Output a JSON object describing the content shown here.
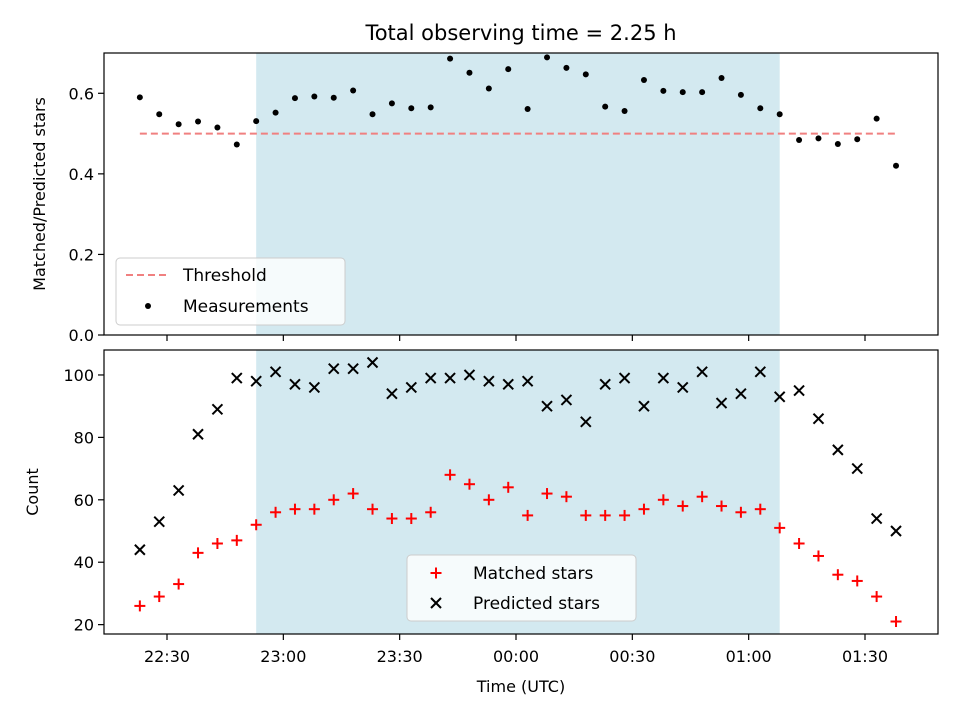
{
  "chart_data": [
    {
      "type": "scatter",
      "title": "Total observing time = 2.25 h",
      "xlabel": "",
      "ylabel": "Matched/Predicted stars",
      "x_axis": "time (UTC)",
      "x_ticks": [
        "22:30",
        "23:00",
        "23:30",
        "00:00",
        "00:30",
        "01:00",
        "01:30"
      ],
      "ylim": [
        0,
        0.7
      ],
      "y_ticks": [
        "0.0",
        "0.2",
        "0.4",
        "0.6"
      ],
      "grid": false,
      "legend_position": "lower-left",
      "shaded_interval": {
        "start": "22:53",
        "end": "01:08",
        "color": "#d3e9f0"
      },
      "threshold": {
        "name": "Threshold",
        "value": 0.5,
        "color": "#f08080",
        "style": "dashed"
      },
      "series": [
        {
          "name": "Measurements",
          "marker": "dot",
          "color": "#000000",
          "x": [
            "22:23",
            "22:28",
            "22:33",
            "22:38",
            "22:43",
            "22:48",
            "22:53",
            "22:58",
            "23:03",
            "23:08",
            "23:13",
            "23:18",
            "23:23",
            "23:28",
            "23:33",
            "23:38",
            "23:43",
            "23:48",
            "23:53",
            "23:58",
            "00:03",
            "00:08",
            "00:13",
            "00:18",
            "00:23",
            "00:28",
            "00:33",
            "00:38",
            "00:43",
            "00:48",
            "00:53",
            "00:58",
            "01:03",
            "01:08",
            "01:13",
            "01:18",
            "01:23",
            "01:28",
            "01:33",
            "01:38"
          ],
          "y": [
            0.59,
            0.548,
            0.523,
            0.53,
            0.515,
            0.473,
            0.531,
            0.552,
            0.588,
            0.592,
            0.589,
            0.607,
            0.548,
            0.575,
            0.563,
            0.565,
            0.686,
            0.651,
            0.612,
            0.66,
            0.561,
            0.689,
            0.663,
            0.647,
            0.567,
            0.556,
            0.633,
            0.606,
            0.603,
            0.603,
            0.638,
            0.596,
            0.563,
            0.548,
            0.484,
            0.488,
            0.474,
            0.486,
            0.537,
            0.42
          ]
        }
      ]
    },
    {
      "type": "scatter",
      "title": "",
      "xlabel": "Time (UTC)",
      "ylabel": "Count",
      "x_ticks": [
        "22:30",
        "23:00",
        "23:30",
        "00:00",
        "00:30",
        "01:00",
        "01:30"
      ],
      "ylim": [
        17,
        108
      ],
      "y_ticks": [
        "20",
        "40",
        "60",
        "80",
        "100"
      ],
      "grid": false,
      "legend_position": "lower-center",
      "shaded_interval": {
        "start": "22:53",
        "end": "01:08",
        "color": "#d3e9f0"
      },
      "series": [
        {
          "name": "Matched stars",
          "marker": "plus",
          "color": "#ff0000",
          "x": [
            "22:23",
            "22:28",
            "22:33",
            "22:38",
            "22:43",
            "22:48",
            "22:53",
            "22:58",
            "23:03",
            "23:08",
            "23:13",
            "23:18",
            "23:23",
            "23:28",
            "23:33",
            "23:38",
            "23:43",
            "23:48",
            "23:53",
            "23:58",
            "00:03",
            "00:08",
            "00:13",
            "00:18",
            "00:23",
            "00:28",
            "00:33",
            "00:38",
            "00:43",
            "00:48",
            "00:53",
            "00:58",
            "01:03",
            "01:08",
            "01:13",
            "01:18",
            "01:23",
            "01:28",
            "01:33",
            "01:38"
          ],
          "y": [
            26,
            29,
            33,
            43,
            46,
            47,
            52,
            56,
            57,
            57,
            60,
            62,
            57,
            54,
            54,
            56,
            68,
            65,
            60,
            64,
            55,
            62,
            61,
            55,
            55,
            55,
            57,
            60,
            58,
            61,
            58,
            56,
            57,
            51,
            46,
            42,
            36,
            34,
            29,
            21
          ]
        },
        {
          "name": "Predicted stars",
          "marker": "x",
          "color": "#000000",
          "x": [
            "22:23",
            "22:28",
            "22:33",
            "22:38",
            "22:43",
            "22:48",
            "22:53",
            "22:58",
            "23:03",
            "23:08",
            "23:13",
            "23:18",
            "23:23",
            "23:28",
            "23:33",
            "23:38",
            "23:43",
            "23:48",
            "23:53",
            "23:58",
            "00:03",
            "00:08",
            "00:13",
            "00:18",
            "00:23",
            "00:28",
            "00:33",
            "00:38",
            "00:43",
            "00:48",
            "00:53",
            "00:58",
            "01:03",
            "01:08",
            "01:13",
            "01:18",
            "01:23",
            "01:28",
            "01:33",
            "01:38"
          ],
          "y": [
            44,
            53,
            63,
            81,
            89,
            99,
            98,
            101,
            97,
            96,
            102,
            102,
            104,
            94,
            96,
            99,
            99,
            100,
            98,
            97,
            98,
            90,
            92,
            85,
            97,
            99,
            90,
            99,
            96,
            101,
            91,
            94,
            101,
            93,
            95,
            86,
            76,
            70,
            54,
            50
          ]
        }
      ]
    }
  ]
}
